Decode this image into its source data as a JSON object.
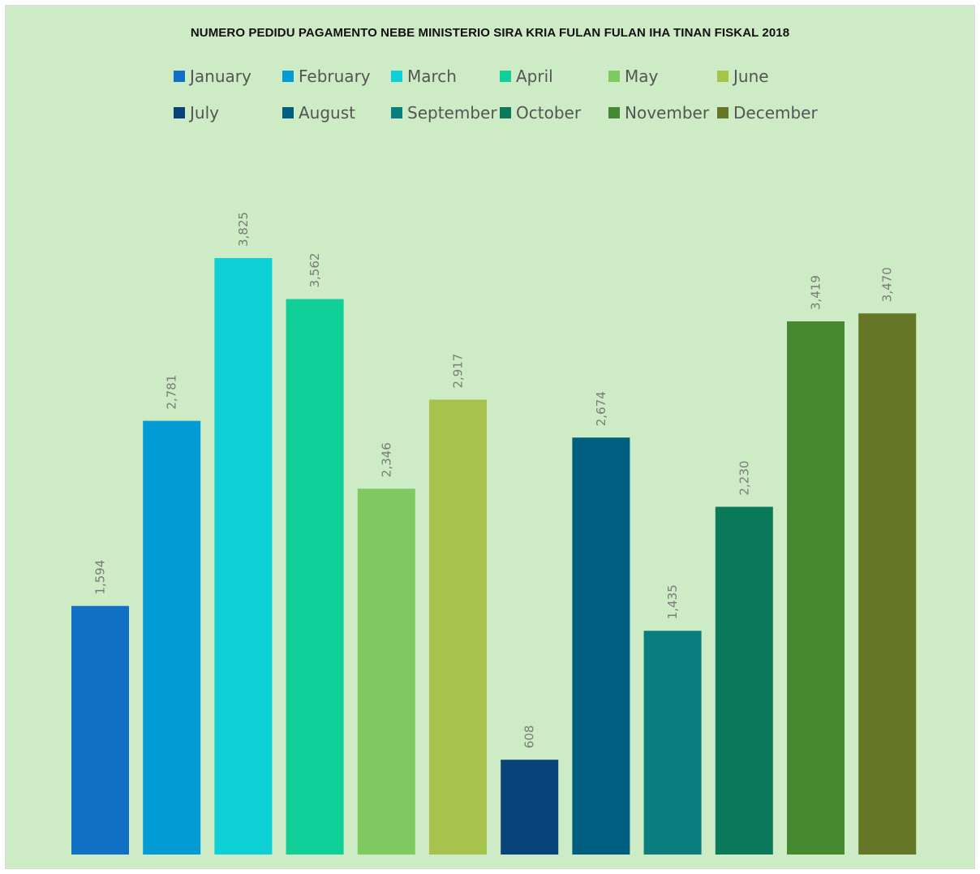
{
  "chart_data": {
    "type": "bar",
    "title": "NUMERO PEDIDU PAGAMENTO NEBE MINISTERIO SIRA KRIA FULAN FULAN IHA TINAN FISKAL 2018",
    "categories": [
      "January",
      "February",
      "March",
      "April",
      "May",
      "June",
      "July",
      "August",
      "September",
      "October",
      "November",
      "December"
    ],
    "values": [
      1594,
      2781,
      3825,
      3562,
      2346,
      2917,
      608,
      2674,
      1435,
      2230,
      3419,
      3470
    ],
    "value_labels": [
      "1,594",
      "2,781",
      "3,825",
      "3,562",
      "2,346",
      "2,917",
      "608",
      "2,674",
      "1,435",
      "2,230",
      "3,419",
      "3,470"
    ],
    "colors": [
      "#0f70c6",
      "#029bd6",
      "#0ed0d7",
      "#11cf99",
      "#7ec960",
      "#a7c34b",
      "#0a427a",
      "#005e80",
      "#0a7d7f",
      "#0b7a5a",
      "#458a2e",
      "#657627"
    ],
    "ylim": [
      0,
      4200
    ],
    "grid": false,
    "legend_position": "top",
    "background": "#cdebc4"
  }
}
